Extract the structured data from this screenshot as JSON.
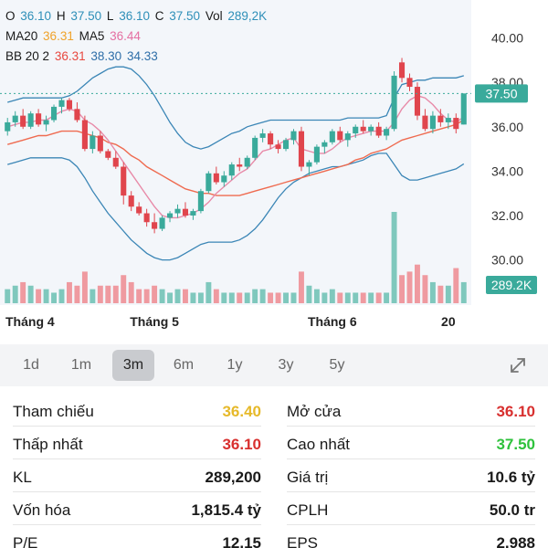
{
  "legend": {
    "o_label": "O",
    "o": "36.10",
    "h_label": "H",
    "h": "37.50",
    "l_label": "L",
    "l": "36.10",
    "c_label": "C",
    "c": "37.50",
    "vol_label": "Vol",
    "vol": "289,2K",
    "ma20_label": "MA20",
    "ma20": "36.31",
    "ma5_label": "MA5",
    "ma5": "36.44",
    "bb_label": "BB 20 2",
    "bb_mid": "36.31",
    "bb_upper": "38.30",
    "bb_lower": "34.33"
  },
  "axis": {
    "y_ticks": [
      "40.00",
      "38.00",
      "36.00",
      "34.00",
      "32.00",
      "30.00"
    ],
    "x_ticks": [
      "Tháng 4",
      "Tháng 5",
      "Tháng 6",
      "20"
    ],
    "current_price": "37.50",
    "current_volume": "289.2K"
  },
  "chart_data": {
    "type": "candlestick",
    "ylim": [
      29.2,
      41.3
    ],
    "candles": [
      [
        35.8,
        36.4,
        35.6,
        36.2
      ],
      [
        36.2,
        36.7,
        36.0,
        36.5
      ],
      [
        36.5,
        36.8,
        35.9,
        36.0
      ],
      [
        36.0,
        36.7,
        35.9,
        36.6
      ],
      [
        36.6,
        36.8,
        36.0,
        36.1
      ],
      [
        36.1,
        36.5,
        35.8,
        36.3
      ],
      [
        36.3,
        37.0,
        36.2,
        36.9
      ],
      [
        36.9,
        37.3,
        36.6,
        37.2
      ],
      [
        37.2,
        37.3,
        36.7,
        36.8
      ],
      [
        36.8,
        37.1,
        36.2,
        36.3
      ],
      [
        36.3,
        36.5,
        34.9,
        35.0
      ],
      [
        35.0,
        35.8,
        34.8,
        35.6
      ],
      [
        35.6,
        35.8,
        34.8,
        34.9
      ],
      [
        34.9,
        35.0,
        34.5,
        34.6
      ],
      [
        34.6,
        34.9,
        34.1,
        34.2
      ],
      [
        34.2,
        34.4,
        32.5,
        32.9
      ],
      [
        32.9,
        33.1,
        32.2,
        32.4
      ],
      [
        32.4,
        32.6,
        32.0,
        32.1
      ],
      [
        32.1,
        32.3,
        31.5,
        31.7
      ],
      [
        31.7,
        32.1,
        31.2,
        31.4
      ],
      [
        31.4,
        32.0,
        31.3,
        31.9
      ],
      [
        31.9,
        32.2,
        31.7,
        32.1
      ],
      [
        32.1,
        32.5,
        31.9,
        32.3
      ],
      [
        32.3,
        32.6,
        31.9,
        32.0
      ],
      [
        32.0,
        32.3,
        31.8,
        32.2
      ],
      [
        32.2,
        33.2,
        32.1,
        33.1
      ],
      [
        33.1,
        34.0,
        33.0,
        33.9
      ],
      [
        33.9,
        34.2,
        33.4,
        33.5
      ],
      [
        33.5,
        34.0,
        33.3,
        33.8
      ],
      [
        33.8,
        34.4,
        33.6,
        34.3
      ],
      [
        34.3,
        34.6,
        34.0,
        34.2
      ],
      [
        34.2,
        34.7,
        34.1,
        34.6
      ],
      [
        34.6,
        35.6,
        34.5,
        35.5
      ],
      [
        35.5,
        35.9,
        35.3,
        35.7
      ],
      [
        35.7,
        35.8,
        35.0,
        35.2
      ],
      [
        35.2,
        35.4,
        34.8,
        35.0
      ],
      [
        35.0,
        35.5,
        34.9,
        35.4
      ],
      [
        35.4,
        35.9,
        35.2,
        35.8
      ],
      [
        35.8,
        36.0,
        34.0,
        34.2
      ],
      [
        34.2,
        34.5,
        33.8,
        34.4
      ],
      [
        34.4,
        35.2,
        34.3,
        35.1
      ],
      [
        35.1,
        35.4,
        34.8,
        35.3
      ],
      [
        35.3,
        35.9,
        35.2,
        35.8
      ],
      [
        35.8,
        36.0,
        35.3,
        35.4
      ],
      [
        35.4,
        35.8,
        35.1,
        35.7
      ],
      [
        35.7,
        36.1,
        35.5,
        36.0
      ],
      [
        36.0,
        36.3,
        35.7,
        35.8
      ],
      [
        35.8,
        36.1,
        35.6,
        36.0
      ],
      [
        36.0,
        36.2,
        35.5,
        35.6
      ],
      [
        35.6,
        36.0,
        35.4,
        35.9
      ],
      [
        35.9,
        38.5,
        35.8,
        38.3
      ],
      [
        38.9,
        39.1,
        38.0,
        38.2
      ],
      [
        38.2,
        38.4,
        37.6,
        37.8
      ],
      [
        37.8,
        38.0,
        36.3,
        36.5
      ],
      [
        36.5,
        36.8,
        35.8,
        35.9
      ],
      [
        35.9,
        36.7,
        35.7,
        36.5
      ],
      [
        36.5,
        36.8,
        36.0,
        36.2
      ],
      [
        36.2,
        36.6,
        35.9,
        36.4
      ],
      [
        36.4,
        36.6,
        35.7,
        35.9
      ],
      [
        36.1,
        37.5,
        36.1,
        37.5
      ]
    ],
    "ma20": [
      35.2,
      35.3,
      35.4,
      35.5,
      35.6,
      35.6,
      35.7,
      35.8,
      35.8,
      35.8,
      35.7,
      35.6,
      35.5,
      35.3,
      35.2,
      35.0,
      34.7,
      34.5,
      34.2,
      34.0,
      33.8,
      33.6,
      33.4,
      33.2,
      33.1,
      33.0,
      33.0,
      32.9,
      32.9,
      32.9,
      32.9,
      33.0,
      33.1,
      33.2,
      33.3,
      33.4,
      33.5,
      33.6,
      33.7,
      33.8,
      33.9,
      34.0,
      34.1,
      34.2,
      34.3,
      34.5,
      34.6,
      34.8,
      34.9,
      35.0,
      35.2,
      35.4,
      35.5,
      35.6,
      35.7,
      35.8,
      35.9,
      36.0,
      36.1,
      36.31
    ],
    "ma5": [
      36.0,
      36.1,
      36.2,
      36.2,
      36.3,
      36.3,
      36.5,
      36.7,
      36.8,
      36.7,
      36.3,
      36.1,
      35.8,
      35.4,
      34.9,
      34.4,
      33.9,
      33.4,
      32.9,
      32.4,
      32.0,
      31.9,
      31.9,
      32.0,
      32.1,
      32.3,
      32.6,
      33.0,
      33.3,
      33.6,
      33.9,
      34.1,
      34.5,
      34.9,
      35.0,
      35.2,
      35.4,
      35.5,
      35.0,
      34.9,
      34.8,
      34.8,
      35.0,
      35.3,
      35.5,
      35.6,
      35.7,
      35.8,
      35.8,
      35.8,
      36.2,
      36.8,
      37.2,
      37.4,
      37.3,
      37.0,
      36.6,
      36.3,
      36.2,
      36.44
    ],
    "bb_upper": [
      37.1,
      37.2,
      37.3,
      37.3,
      37.3,
      37.3,
      37.3,
      37.3,
      37.4,
      37.6,
      37.9,
      38.2,
      38.4,
      38.6,
      38.7,
      38.7,
      38.6,
      38.3,
      37.9,
      37.4,
      36.8,
      36.2,
      35.7,
      35.3,
      35.1,
      35.0,
      35.1,
      35.3,
      35.5,
      35.7,
      35.8,
      36.0,
      36.1,
      36.2,
      36.3,
      36.3,
      36.3,
      36.3,
      36.3,
      36.3,
      36.3,
      36.3,
      36.3,
      36.3,
      36.4,
      36.4,
      36.4,
      36.4,
      36.4,
      36.5,
      37.3,
      37.9,
      38.0,
      38.1,
      38.1,
      38.2,
      38.2,
      38.2,
      38.2,
      38.3
    ],
    "bb_lower": [
      34.3,
      34.4,
      34.5,
      34.6,
      34.6,
      34.6,
      34.6,
      34.6,
      34.5,
      34.2,
      33.7,
      33.1,
      32.6,
      32.1,
      31.7,
      31.3,
      30.9,
      30.6,
      30.3,
      30.1,
      30.0,
      30.0,
      30.1,
      30.3,
      30.5,
      30.7,
      30.8,
      30.8,
      30.8,
      30.8,
      30.9,
      31.1,
      31.4,
      31.8,
      32.3,
      32.8,
      33.2,
      33.5,
      33.7,
      33.9,
      34.0,
      34.1,
      34.2,
      34.2,
      34.3,
      34.4,
      34.5,
      34.7,
      34.8,
      34.8,
      34.3,
      33.8,
      33.6,
      33.6,
      33.7,
      33.8,
      33.9,
      34.0,
      34.1,
      34.33
    ],
    "volume": [
      0.4,
      0.5,
      0.6,
      0.5,
      0.4,
      0.4,
      0.3,
      0.4,
      0.6,
      0.5,
      0.9,
      0.4,
      0.5,
      0.5,
      0.5,
      0.8,
      0.6,
      0.4,
      0.4,
      0.5,
      0.4,
      0.3,
      0.4,
      0.4,
      0.3,
      0.3,
      0.6,
      0.4,
      0.3,
      0.3,
      0.3,
      0.3,
      0.4,
      0.4,
      0.3,
      0.3,
      0.3,
      0.3,
      0.9,
      0.5,
      0.4,
      0.3,
      0.4,
      0.3,
      0.3,
      0.3,
      0.3,
      0.3,
      0.3,
      0.3,
      2.6,
      0.8,
      0.9,
      1.1,
      0.8,
      0.6,
      0.5,
      0.5,
      1.0,
      0.6
    ]
  },
  "ranges": {
    "items": [
      "1d",
      "1m",
      "3m",
      "6m",
      "1y",
      "3y",
      "5y"
    ],
    "active": "3m"
  },
  "stats": {
    "ref_label": "Tham chiếu",
    "ref_value": "36.40",
    "open_label": "Mở cửa",
    "open_value": "36.10",
    "low_label": "Thấp nhất",
    "low_value": "36.10",
    "high_label": "Cao nhất",
    "high_value": "37.50",
    "vol_label": "KL",
    "vol_value": "289,200",
    "value_label": "Giá trị",
    "value_value": "10.6 tỷ",
    "cap_label": "Vốn hóa",
    "cap_value": "1,815.4 tỷ",
    "shares_label": "CPLH",
    "shares_value": "50.0 tr",
    "pe_label": "P/E",
    "pe_value": "12.15",
    "eps_label": "EPS",
    "eps_value": "2,988"
  },
  "colors": {
    "up": "#3aaa9b",
    "down": "#e0454d",
    "vol_up": "#7fc8bd",
    "vol_down": "#ef9aa0",
    "ma20": "#ef6b50",
    "ma5": "#e88aa8",
    "bb": "#3b86b6",
    "ref": "#e6b92a",
    "high": "#2ec23c",
    "low": "#d8302f",
    "price_tag": "#3aaa9b"
  }
}
